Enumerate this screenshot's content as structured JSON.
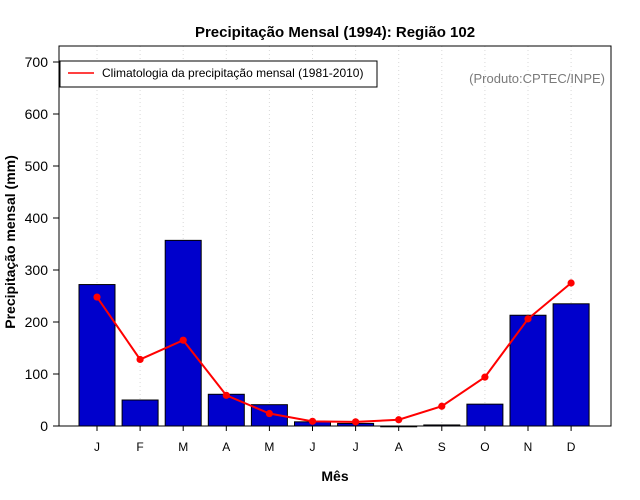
{
  "chart_data": {
    "type": "bar",
    "title": "Precipitação Mensal (1994): Região 102",
    "xlabel": "Mês",
    "ylabel": "Precipitação mensal (mm)",
    "credit": "(Produto:CPTEC/INPE)",
    "categories": [
      "J",
      "F",
      "M",
      "A",
      "M",
      "J",
      "J",
      "A",
      "S",
      "O",
      "N",
      "D"
    ],
    "ylim": [
      0,
      700
    ],
    "yticks": [
      0,
      100,
      200,
      300,
      400,
      500,
      600,
      700
    ],
    "grid": "vertical-dotted",
    "legend_position": "top-left",
    "series": [
      {
        "name": "Precipitação mensal (1994)",
        "type": "bar",
        "color": "#0000cc",
        "values": [
          272,
          50,
          357,
          61,
          41,
          8,
          5,
          0,
          2,
          42,
          213,
          235
        ]
      },
      {
        "name": "Climatologia da precipitação mensal (1981-2010)",
        "type": "line",
        "color": "#ff0000",
        "values": [
          248,
          128,
          165,
          59,
          24,
          9,
          8,
          12,
          38,
          94,
          206,
          275
        ]
      }
    ]
  }
}
